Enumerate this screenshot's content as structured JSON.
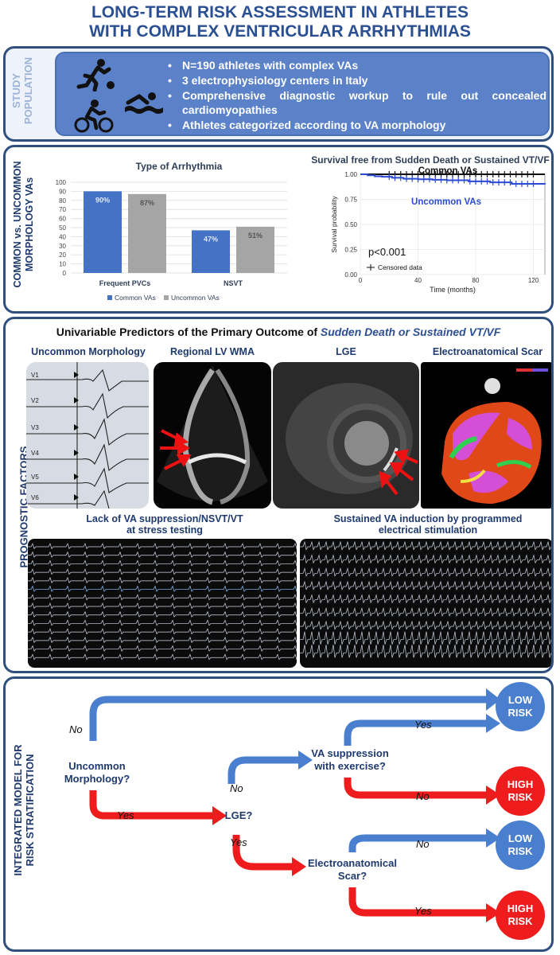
{
  "title": {
    "line1": "LONG-TERM RISK ASSESSMENT IN ATHLETES",
    "line2": "WITH COMPLEX VENTRICULAR ARRHYTHMIAS"
  },
  "population": {
    "label_line1": "STUDY",
    "label_line2": "POPULATION",
    "bullets": [
      "N=190 athletes with complex VAs",
      "3 electrophysiology centers in Italy",
      "Comprehensive diagnostic workup to rule out concealed cardiomyopathies",
      "Athletes categorized according to VA morphology"
    ],
    "icons": [
      "runner-soccer-icon",
      "swimmer-icon",
      "cyclist-icon"
    ]
  },
  "comparison": {
    "label_line1": "COMMON vs. UNCOMMON",
    "label_line2": "MORPHOLOGY VAs"
  },
  "chart_data": [
    {
      "type": "bar",
      "title": "Type of Arrhythmia",
      "categories": [
        "Frequent PVCs",
        "NSVT"
      ],
      "series": [
        {
          "name": "Common VAs",
          "values": [
            90,
            47
          ],
          "color": "#4472c4"
        },
        {
          "name": "Uncommon VAs",
          "values": [
            87,
            51
          ],
          "color": "#a5a5a5"
        }
      ],
      "data_labels": [
        [
          "90%",
          "47%"
        ],
        [
          "87%",
          "51%"
        ]
      ],
      "ylim": [
        0,
        100
      ],
      "yticks": [
        0,
        10,
        20,
        30,
        40,
        50,
        60,
        70,
        80,
        90,
        100
      ],
      "grid": true,
      "legend": "bottom"
    },
    {
      "type": "line",
      "title": "Survival free from Sudden Death or Sustained VT/VF",
      "xlabel": "Time (months)",
      "ylabel": "Survival probability",
      "xticks": [
        0,
        40,
        80,
        120
      ],
      "yticks": [
        "0.00",
        "0.25",
        "0.50",
        "0.75",
        "1.00"
      ],
      "xlim": [
        0,
        128
      ],
      "ylim": [
        0,
        1
      ],
      "series": [
        {
          "name": "Common VAs",
          "color": "#111111",
          "x": [
            0,
            128
          ],
          "y": [
            1.0,
            1.0
          ]
        },
        {
          "name": "Uncommon VAs",
          "color": "#2c4bd4",
          "x": [
            0,
            5,
            10,
            15,
            22,
            30,
            40,
            50,
            60,
            75,
            90,
            105,
            128
          ],
          "y": [
            1.0,
            0.99,
            0.98,
            0.975,
            0.965,
            0.955,
            0.95,
            0.945,
            0.94,
            0.93,
            0.92,
            0.905,
            0.9
          ]
        }
      ],
      "annotation": "p<0.001",
      "censored_label": "Censored data",
      "legend": "bottom-left"
    }
  ],
  "predictors": {
    "title_plain": "Univariable Predictors of the Primary Outcome of ",
    "title_italic": "Sudden Death or Sustained VT/VF",
    "label": "PROGNOSTIC FACTORS",
    "images": {
      "uncommon": "Uncommon Morphology",
      "wma": "Regional LV WMA",
      "lge": "LGE",
      "scar": "Electroanatomical Scar",
      "stress_line1": "Lack of VA suppression/NSVT/VT",
      "stress_line2": "at stress testing",
      "pes_line1": "Sustained VA induction by programmed",
      "pes_line2": "electrical stimulation"
    },
    "ecg_leads": [
      "V1",
      "V2",
      "V3",
      "V4",
      "V5",
      "V6"
    ]
  },
  "model": {
    "label_line1": "INTEGRATED MODEL FOR",
    "label_line2": "RISK STRATIFICATION",
    "uncommon_q_line1": "Uncommon",
    "uncommon_q_line2": "Morphology?",
    "lge_q": "LGE?",
    "vasupp_line1": "VA suppression",
    "vasupp_line2": "with exercise?",
    "scar_line1": "Electroanatomical",
    "scar_line2": "Scar?",
    "no": "No",
    "yes": "Yes",
    "low_risk_line1": "LOW",
    "low_risk_line2": "RISK",
    "high_risk_line1": "HIGH",
    "high_risk_line2": "RISK",
    "colors": {
      "blue": "#4a7fcf",
      "red": "#ee1c1c"
    }
  }
}
